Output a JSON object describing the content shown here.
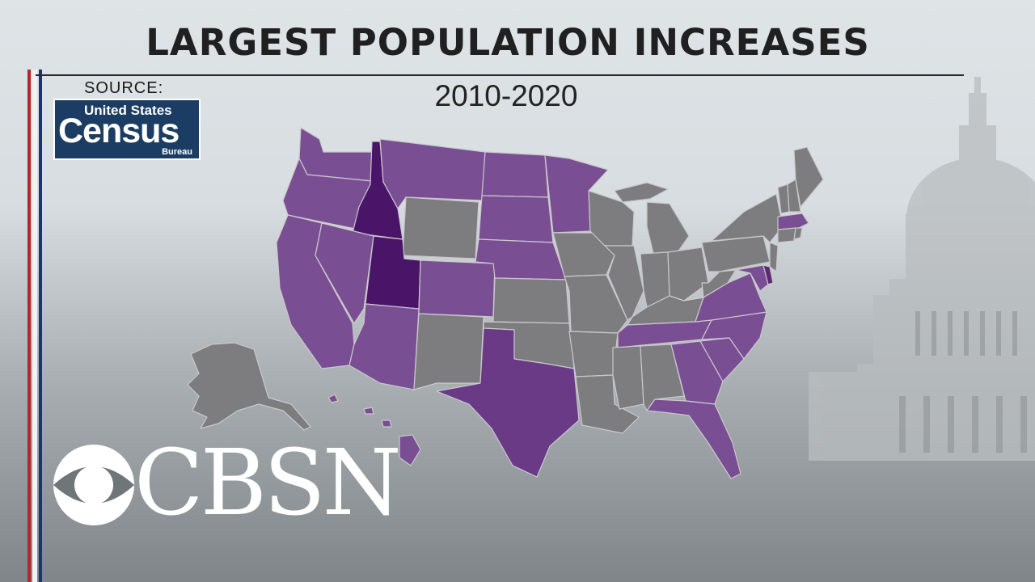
{
  "title": "LARGEST POPULATION INCREASES",
  "subtitle": "2010-2020",
  "source": {
    "label": "SOURCE:",
    "logo_line1": "United States",
    "logo_line2": "Census",
    "logo_line3": "Bureau"
  },
  "network_logo": "CBSN",
  "colors": {
    "gray_state": "#7d7d7f",
    "purple_light": "#7a4e93",
    "purple_mid": "#6a3a86",
    "purple_dark": "#4a1468",
    "border": "#c9c9cc",
    "stripe_red": "#b3262c",
    "stripe_blue": "#1f2f78",
    "logo_bg": "#1c3d63"
  },
  "highlighted_states": [
    "Washington",
    "Oregon",
    "California",
    "Idaho",
    "Nevada",
    "Utah",
    "Arizona",
    "Montana",
    "Colorado",
    "North Dakota",
    "South Dakota",
    "Nebraska",
    "Minnesota",
    "Texas",
    "Tennessee",
    "Georgia",
    "Florida",
    "South Carolina",
    "North Carolina",
    "Virginia",
    "Delaware",
    "Maryland",
    "Massachusetts",
    "Hawaii"
  ],
  "darkest_states": [
    "Idaho",
    "Utah"
  ]
}
